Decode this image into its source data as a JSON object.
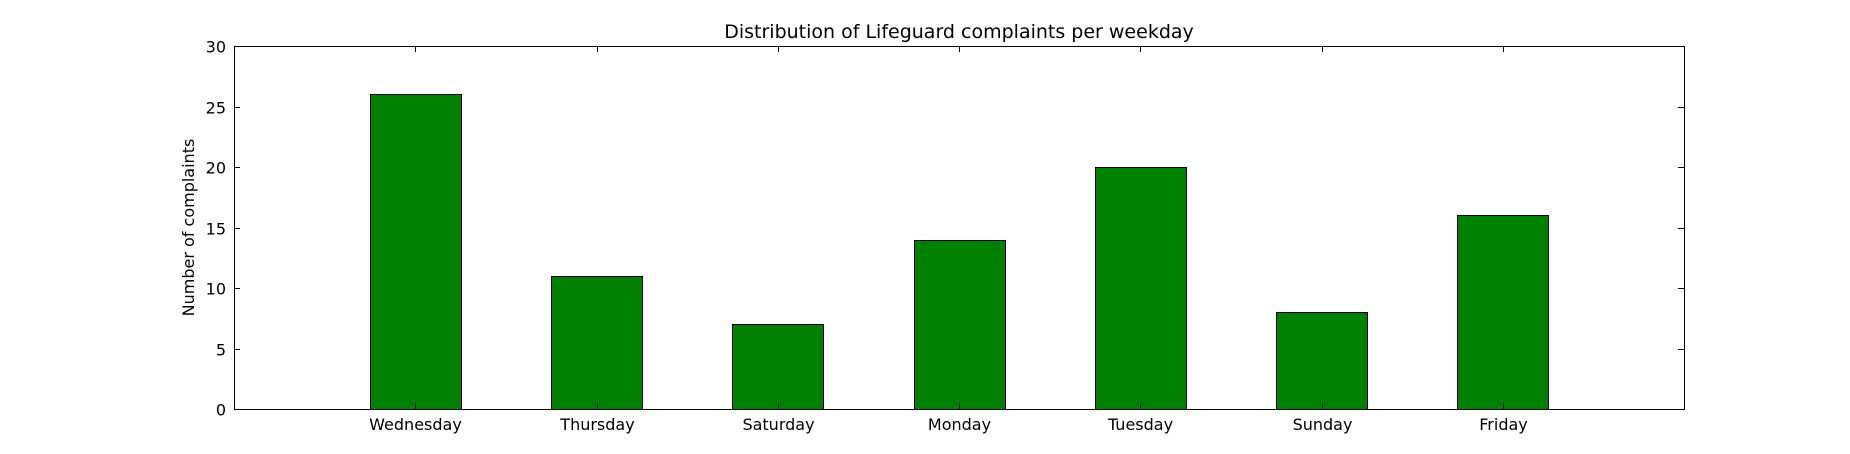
{
  "chart_data": {
    "type": "bar",
    "title": "Distribution of  Lifeguard complaints per weekday",
    "xlabel": "",
    "ylabel": "Number of complaints",
    "categories": [
      "Wednesday",
      "Thursday",
      "Saturday",
      "Monday",
      "Tuesday",
      "Sunday",
      "Friday"
    ],
    "values": [
      26,
      11,
      7,
      14,
      20,
      8,
      16
    ],
    "ylim": [
      0,
      30
    ],
    "yticks": [
      0,
      5,
      10,
      15,
      20,
      25,
      30
    ],
    "bar_color": "#008000",
    "grid": false,
    "legend": "none"
  }
}
